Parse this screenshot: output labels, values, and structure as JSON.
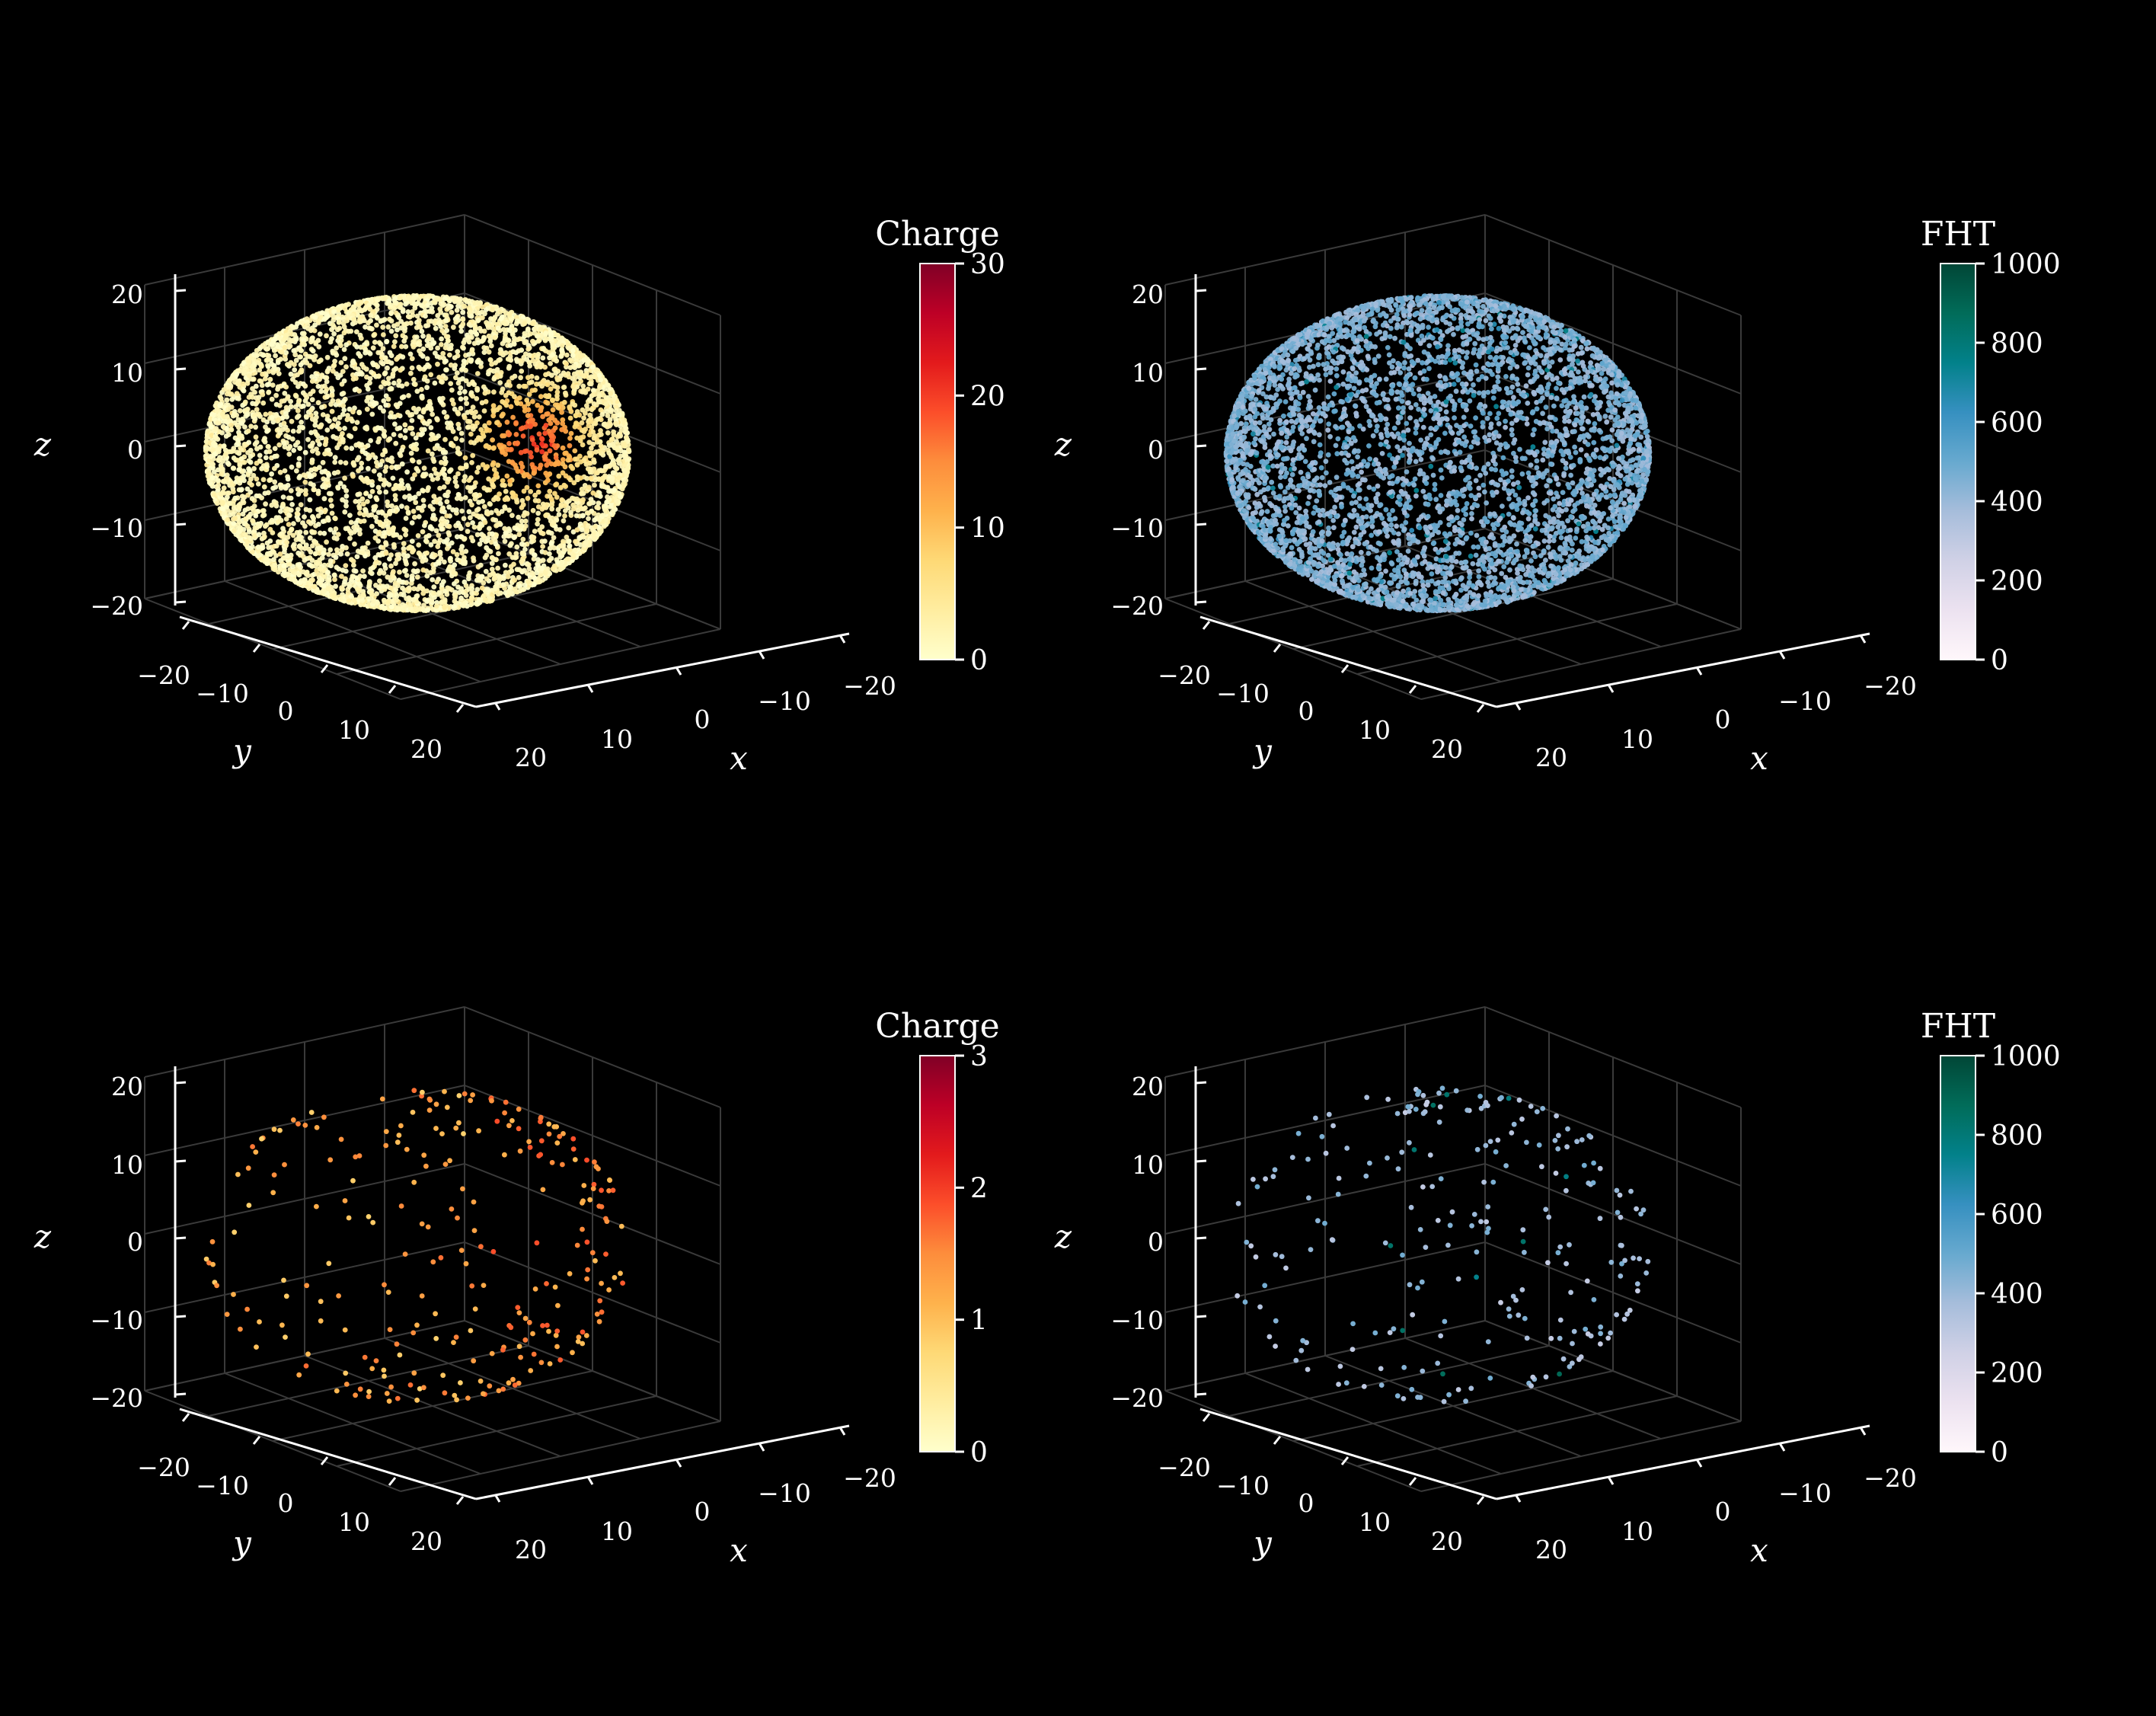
{
  "colors": {
    "background": "#000000",
    "foreground": "#ffffff",
    "grid": "#3a3a3a",
    "YlOrRd": [
      "#ffffcc",
      "#ffeda0",
      "#fed976",
      "#feb24c",
      "#fd8d3c",
      "#fc4e2a",
      "#e31a1c",
      "#bd0026",
      "#800026"
    ],
    "PuBuGn": [
      "#fff7fb",
      "#ece2f0",
      "#d0d1e6",
      "#a6bddb",
      "#67a9cf",
      "#3690c0",
      "#02818a",
      "#016c59",
      "#014636"
    ]
  },
  "chart_data": [
    {
      "type": "scatter",
      "projection": "3d",
      "panel": "top-left",
      "colorbar": {
        "title": "Charge",
        "range": [
          0,
          30
        ],
        "ticks": [
          "0",
          "10",
          "20",
          "30"
        ],
        "colormap": "YlOrRd"
      },
      "axes": {
        "x": {
          "label": "x",
          "ticks": [
            "20",
            "10",
            "0",
            "−10",
            "−20"
          ]
        },
        "y": {
          "label": "y",
          "ticks": [
            "−20",
            "−10",
            "0",
            "10",
            "20"
          ]
        },
        "z": {
          "label": "z",
          "ticks": [
            "20",
            "10",
            "0",
            "−10",
            "−20"
          ]
        },
        "range": [
          -20,
          20
        ]
      },
      "grid": true,
      "points_description": "dense hits covering sphere of radius ~19, charge mostly near 0-3, hot spot up to ~15-20 near (x=-5, y=-17, z=2)",
      "sphere_radius": 19,
      "point_density": "dense",
      "hotspot": {
        "x": -5,
        "y": -17,
        "z": 2,
        "peak_value": 18
      }
    },
    {
      "type": "scatter",
      "projection": "3d",
      "panel": "top-right",
      "colorbar": {
        "title": "FHT",
        "range": [
          0,
          1000
        ],
        "ticks": [
          "0",
          "200",
          "400",
          "600",
          "800",
          "1000"
        ],
        "colormap": "PuBuGn"
      },
      "axes": {
        "x": {
          "label": "x",
          "ticks": [
            "20",
            "10",
            "0",
            "−10",
            "−20"
          ]
        },
        "y": {
          "label": "y",
          "ticks": [
            "−20",
            "−10",
            "0",
            "10",
            "20"
          ]
        },
        "z": {
          "label": "z",
          "ticks": [
            "20",
            "10",
            "0",
            "−10",
            "−20"
          ]
        },
        "range": [
          -20,
          20
        ]
      },
      "grid": true,
      "sphere_radius": 19,
      "point_density": "dense",
      "value_range_observed": [
        250,
        620
      ]
    },
    {
      "type": "scatter",
      "projection": "3d",
      "panel": "bottom-left",
      "colorbar": {
        "title": "Charge",
        "range": [
          0,
          3
        ],
        "ticks": [
          "0",
          "1",
          "2",
          "3"
        ],
        "colormap": "YlOrRd"
      },
      "axes": {
        "x": {
          "label": "x",
          "ticks": [
            "20",
            "10",
            "0",
            "−10",
            "−20"
          ]
        },
        "y": {
          "label": "y",
          "ticks": [
            "−20",
            "−10",
            "0",
            "10",
            "20"
          ]
        },
        "z": {
          "label": "z",
          "ticks": [
            "20",
            "10",
            "0",
            "−10",
            "−20"
          ]
        },
        "range": [
          -20,
          20
        ]
      },
      "grid": true,
      "sphere_radius": 19,
      "point_density": "sparse",
      "point_count": 330,
      "value_range_observed": [
        0.8,
        1.8
      ]
    },
    {
      "type": "scatter",
      "projection": "3d",
      "panel": "bottom-right",
      "colorbar": {
        "title": "FHT",
        "range": [
          0,
          1000
        ],
        "ticks": [
          "0",
          "200",
          "400",
          "600",
          "800",
          "1000"
        ],
        "colormap": "PuBuGn"
      },
      "axes": {
        "x": {
          "label": "x",
          "ticks": [
            "20",
            "10",
            "0",
            "−10",
            "−20"
          ]
        },
        "y": {
          "label": "y",
          "ticks": [
            "−20",
            "−10",
            "0",
            "10",
            "20"
          ]
        },
        "z": {
          "label": "z",
          "ticks": [
            "20",
            "10",
            "0",
            "−10",
            "−20"
          ]
        },
        "range": [
          -20,
          20
        ]
      },
      "grid": true,
      "sphere_radius": 19,
      "point_density": "sparse",
      "point_count": 300,
      "value_range_observed": [
        250,
        900
      ]
    }
  ]
}
